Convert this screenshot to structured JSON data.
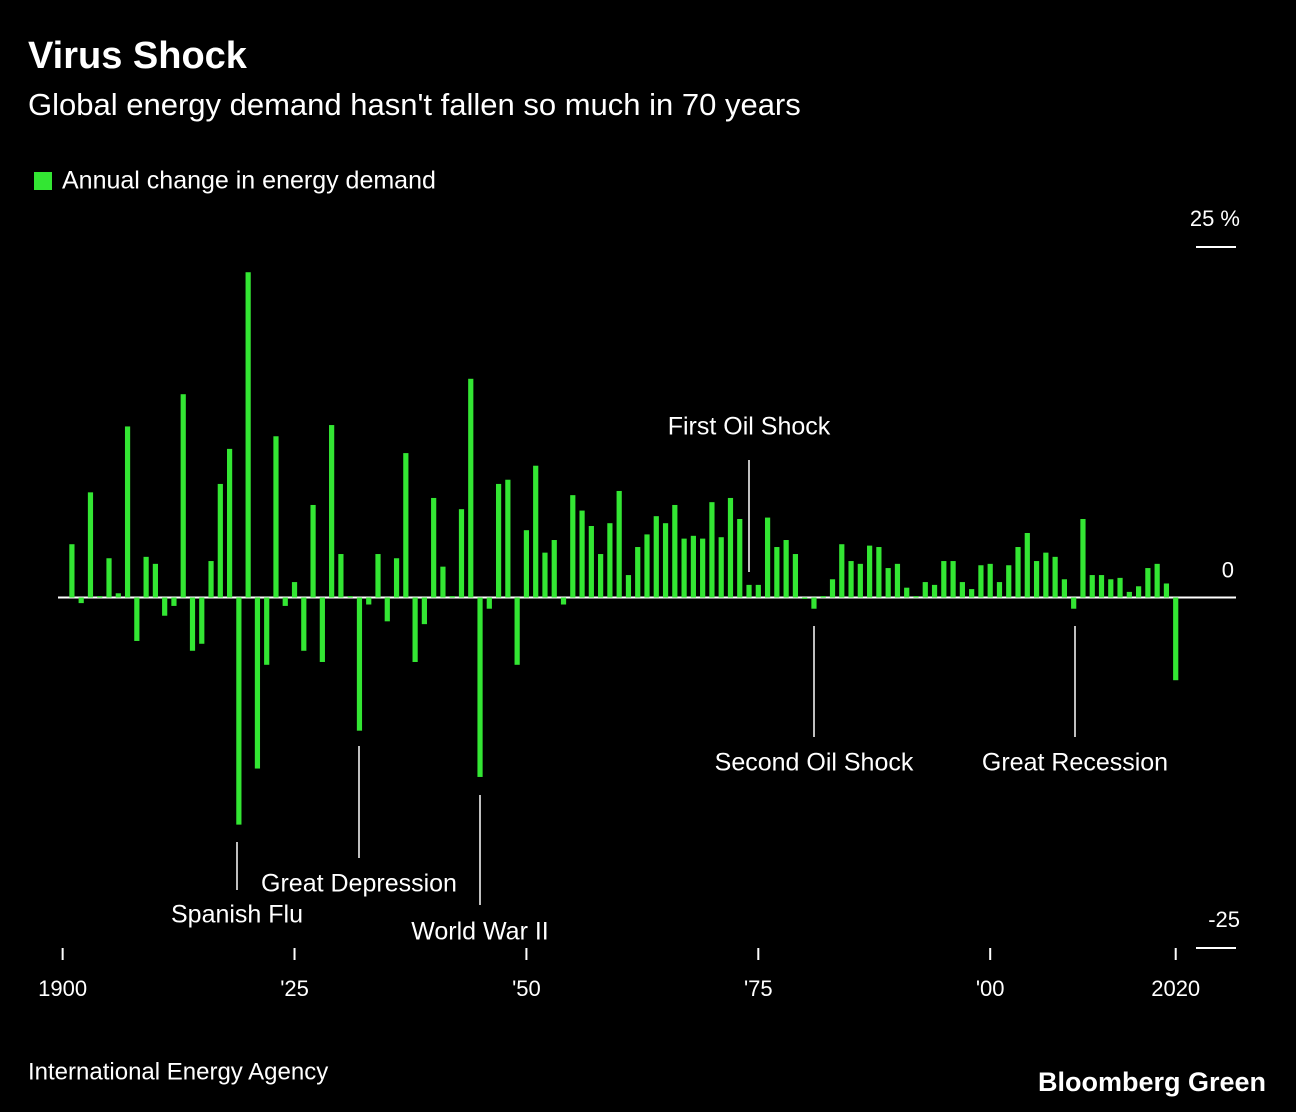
{
  "chart_data": {
    "type": "bar",
    "title": "Virus Shock",
    "subtitle": "Global energy demand hasn't fallen so much in 70 years",
    "source": "International Energy Agency",
    "brand": "Bloomberg Green",
    "series": [
      {
        "name": "Annual change in energy demand",
        "color": "#33e633",
        "x": [
          1901,
          1902,
          1903,
          1904,
          1905,
          1906,
          1907,
          1908,
          1909,
          1910,
          1911,
          1912,
          1913,
          1914,
          1915,
          1916,
          1917,
          1918,
          1919,
          1920,
          1921,
          1922,
          1923,
          1924,
          1925,
          1926,
          1927,
          1928,
          1929,
          1930,
          1931,
          1932,
          1933,
          1934,
          1935,
          1936,
          1937,
          1938,
          1939,
          1940,
          1941,
          1942,
          1943,
          1944,
          1945,
          1946,
          1947,
          1948,
          1949,
          1950,
          1951,
          1952,
          1953,
          1954,
          1955,
          1956,
          1957,
          1958,
          1959,
          1960,
          1961,
          1962,
          1963,
          1964,
          1965,
          1966,
          1967,
          1968,
          1969,
          1970,
          1971,
          1972,
          1973,
          1974,
          1975,
          1976,
          1977,
          1978,
          1979,
          1980,
          1981,
          1982,
          1983,
          1984,
          1985,
          1986,
          1987,
          1988,
          1989,
          1990,
          1991,
          1992,
          1993,
          1994,
          1995,
          1996,
          1997,
          1998,
          1999,
          2000,
          2001,
          2002,
          2003,
          2004,
          2005,
          2006,
          2007,
          2008,
          2009,
          2010,
          2011,
          2012,
          2013,
          2014,
          2015,
          2016,
          2017,
          2018,
          2019,
          2020
        ],
        "values": [
          3.8,
          -0.4,
          7.5,
          0.1,
          2.8,
          0.3,
          12.2,
          -3.1,
          2.9,
          2.4,
          -1.3,
          -0.6,
          14.5,
          -3.8,
          -3.3,
          2.6,
          8.1,
          10.6,
          -16.2,
          23.2,
          -12.2,
          -4.8,
          11.5,
          -0.6,
          1.1,
          -3.8,
          6.6,
          -4.6,
          12.3,
          3.1,
          0.1,
          -9.5,
          -0.5,
          3.1,
          -1.7,
          2.8,
          10.3,
          -4.6,
          -1.9,
          7.1,
          2.2,
          0.1,
          6.3,
          15.6,
          -12.8,
          -0.8,
          8.1,
          8.4,
          -4.8,
          4.8,
          9.4,
          3.2,
          4.1,
          -0.5,
          7.3,
          6.2,
          5.1,
          3.1,
          5.3,
          7.6,
          1.6,
          3.6,
          4.5,
          5.8,
          5.3,
          6.6,
          4.2,
          4.4,
          4.2,
          6.8,
          4.3,
          7.1,
          5.6,
          0.9,
          0.9,
          5.7,
          3.6,
          4.1,
          3.1,
          -0.1,
          -0.8,
          0.1,
          1.3,
          3.8,
          2.6,
          2.4,
          3.7,
          3.6,
          2.1,
          2.4,
          0.7,
          0.1,
          1.1,
          0.9,
          2.6,
          2.6,
          1.1,
          0.6,
          2.3,
          2.4,
          1.1,
          2.3,
          3.6,
          4.6,
          2.6,
          3.2,
          2.9,
          1.3,
          -0.8,
          5.6,
          1.6,
          1.6,
          1.3,
          1.4,
          0.4,
          0.8,
          2.1,
          2.4,
          1.0,
          -5.9
        ]
      }
    ],
    "xlim": [
      1899.5,
      2026.5
    ],
    "xticks": [
      1900,
      {
        "value": 1925,
        "label": "'25"
      },
      {
        "value": 1950,
        "label": "'50"
      },
      {
        "value": 1975,
        "label": "'75"
      },
      {
        "value": 2000,
        "label": "'00"
      },
      2020
    ],
    "ylim": [
      -25,
      25
    ],
    "yticks": [
      {
        "value": 25,
        "label": "25 %"
      },
      0,
      -25
    ],
    "annotations": [
      "First Oil Shock",
      "Second Oil Shock",
      "Great Recession",
      "Spanish Flu",
      "Great Depression",
      "World War II"
    ]
  }
}
